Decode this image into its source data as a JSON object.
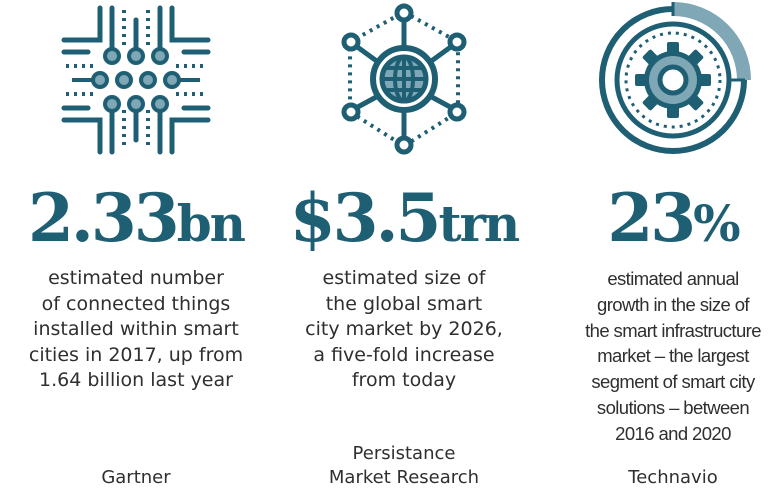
{
  "colors": {
    "accent": "#1f5f73",
    "accent_light": "#7fa7b6",
    "text": "#2f2f2f"
  },
  "stats": [
    {
      "icon": "circuit-icon",
      "value": "2.33",
      "unit": "bn",
      "description": [
        "estimated number",
        "of connected things",
        "installed within smart",
        "cities in 2017, up from",
        "1.64 billion last year"
      ],
      "source": [
        "Gartner"
      ]
    },
    {
      "icon": "globe-network-icon",
      "value": "$3.5",
      "unit": "trn",
      "description": [
        "estimated size of",
        "the global smart",
        "city market by 2026,",
        "a five-fold increase",
        "from today"
      ],
      "source": [
        "Persistance",
        "Market Research"
      ]
    },
    {
      "icon": "gear-progress-icon",
      "value": "23",
      "unit": "%",
      "description": [
        "estimated annual",
        "growth in the size of",
        "the smart infrastructure",
        "market – the largest",
        "segment of smart city",
        "solutions – between",
        "2016 and 2020"
      ],
      "source": [
        "Technavio"
      ]
    }
  ]
}
